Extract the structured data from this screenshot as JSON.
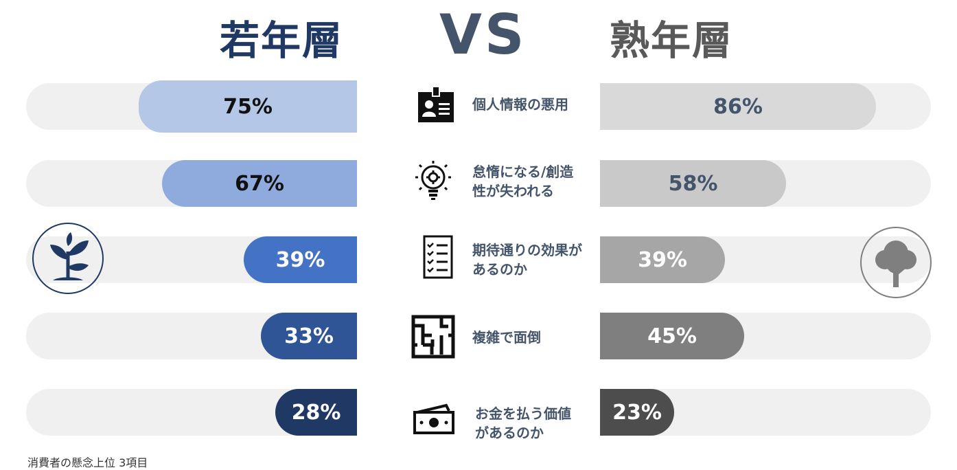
{
  "titles": {
    "young": "若年層",
    "vs": "VS",
    "old": "熟年層"
  },
  "footnote": "消費者の懸念上位 3項目",
  "colors": {
    "young": [
      "#b4c7e7",
      "#8faadc",
      "#4472c4",
      "#2f5597",
      "#1f3864"
    ],
    "old": [
      "#d9d9d9",
      "#c9c9c9",
      "#a6a6a6",
      "#7f7f7f",
      "#4d4d4d"
    ]
  },
  "chart_data": {
    "type": "bar",
    "categories": [
      "個人情報の悪用",
      "怠惰になる/創造性が失われる",
      "期待通りの効果があるのか",
      "複雑で面倒",
      "お金を払う価値があるのか"
    ],
    "category_lines": [
      [
        "個人情報の悪用"
      ],
      [
        "怠惰になる/創造",
        "性が失われる"
      ],
      [
        "期待通りの効果が",
        "あるのか"
      ],
      [
        "複雑で面倒"
      ],
      [
        "お金を払う価値",
        "があるのか"
      ]
    ],
    "icons": [
      "id-card-icon",
      "lightbulb-gear-icon",
      "checklist-icon",
      "maze-icon",
      "money-icon"
    ],
    "series": [
      {
        "name": "若年層",
        "values": [
          75,
          67,
          39,
          33,
          28
        ],
        "labels": [
          "75%",
          "67%",
          "39%",
          "33%",
          "28%"
        ]
      },
      {
        "name": "熟年層",
        "values": [
          86,
          58,
          39,
          45,
          23
        ],
        "labels": [
          "86%",
          "58%",
          "39%",
          "45%",
          "23%"
        ]
      }
    ],
    "ylim": [
      0,
      100
    ]
  }
}
